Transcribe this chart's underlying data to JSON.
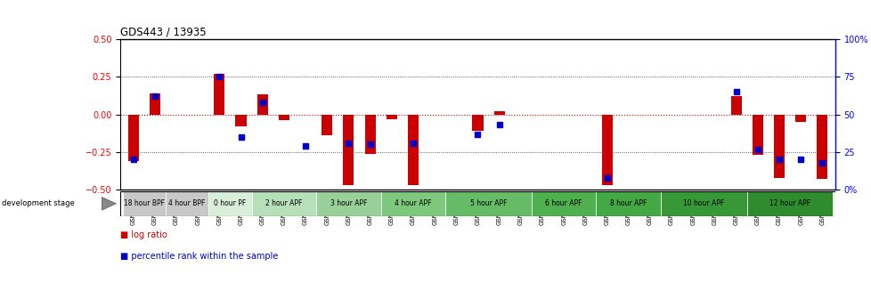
{
  "title": "GDS443 / 13935",
  "samples": [
    "GSM4585",
    "GSM4586",
    "GSM4587",
    "GSM4588",
    "GSM4589",
    "GSM4590",
    "GSM4591",
    "GSM4592",
    "GSM4593",
    "GSM4594",
    "GSM4595",
    "GSM4596",
    "GSM4597",
    "GSM4598",
    "GSM4599",
    "GSM4600",
    "GSM4601",
    "GSM4602",
    "GSM4603",
    "GSM4604",
    "GSM4605",
    "GSM4606",
    "GSM4607",
    "GSM4608",
    "GSM4609",
    "GSM4610",
    "GSM4611",
    "GSM4612",
    "GSM4613",
    "GSM4614",
    "GSM4615",
    "GSM4616",
    "GSM4617"
  ],
  "log_ratio": [
    -0.31,
    0.14,
    0.0,
    0.0,
    0.27,
    -0.08,
    0.13,
    -0.04,
    0.0,
    -0.14,
    -0.47,
    -0.26,
    -0.03,
    -0.47,
    0.0,
    0.0,
    -0.11,
    0.02,
    0.0,
    0.0,
    0.0,
    0.0,
    -0.47,
    0.0,
    0.0,
    0.0,
    0.0,
    0.0,
    0.12,
    -0.27,
    -0.42,
    -0.05,
    -0.43
  ],
  "percentile_rank": [
    20,
    62,
    null,
    null,
    75,
    35,
    58,
    null,
    29,
    null,
    31,
    30,
    null,
    31,
    null,
    null,
    37,
    43,
    null,
    null,
    null,
    null,
    8,
    null,
    null,
    null,
    null,
    null,
    65,
    27,
    20,
    20,
    18
  ],
  "stage_groups": [
    {
      "label": "18 hour BPF",
      "samples": [
        "GSM4585",
        "GSM4586"
      ],
      "color": "#c8c8c8"
    },
    {
      "label": "4 hour BPF",
      "samples": [
        "GSM4587",
        "GSM4588"
      ],
      "color": "#c8c8c8"
    },
    {
      "label": "0 hour PF",
      "samples": [
        "GSM4589",
        "GSM4590"
      ],
      "color": "#d8eed8"
    },
    {
      "label": "2 hour APF",
      "samples": [
        "GSM4591",
        "GSM4592",
        "GSM4593"
      ],
      "color": "#b8e0b8"
    },
    {
      "label": "3 hour APF",
      "samples": [
        "GSM4594",
        "GSM4595",
        "GSM4596"
      ],
      "color": "#99d099"
    },
    {
      "label": "4 hour APF",
      "samples": [
        "GSM4597",
        "GSM4598",
        "GSM4599"
      ],
      "color": "#7dc87d"
    },
    {
      "label": "5 hour APF",
      "samples": [
        "GSM4600",
        "GSM4601",
        "GSM4602",
        "GSM4603"
      ],
      "color": "#66bb66"
    },
    {
      "label": "6 hour APF",
      "samples": [
        "GSM4604",
        "GSM4605",
        "GSM4606"
      ],
      "color": "#50b050"
    },
    {
      "label": "8 hour APF",
      "samples": [
        "GSM4607",
        "GSM4608",
        "GSM4609"
      ],
      "color": "#44a844"
    },
    {
      "label": "10 hour APF",
      "samples": [
        "GSM4610",
        "GSM4611",
        "GSM4612",
        "GSM4613"
      ],
      "color": "#389838"
    },
    {
      "label": "12 hour APF",
      "samples": [
        "GSM4614",
        "GSM4615",
        "GSM4616",
        "GSM4617"
      ],
      "color": "#2e8b2e"
    }
  ],
  "ylim": [
    -0.5,
    0.5
  ],
  "y2lim": [
    0,
    100
  ],
  "bar_color": "#cc0000",
  "dot_color": "#0000cc",
  "zero_line_color": "#cc0000",
  "background_color": "#ffffff"
}
